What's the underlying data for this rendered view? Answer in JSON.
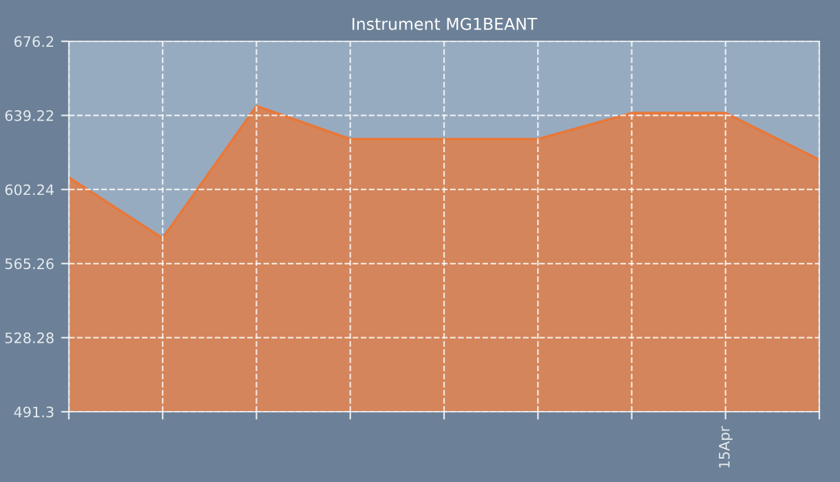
{
  "chart_data": {
    "type": "area",
    "title": "Instrument MG1BEANT",
    "categories": [
      null,
      null,
      null,
      null,
      null,
      null,
      null,
      "15Apr",
      null
    ],
    "series": [
      {
        "color": "#e8783a",
        "values": [
          608.2,
          577.9,
          643.9,
          627.4,
          627.4,
          627.4,
          640.4,
          640.4,
          617.1
        ]
      }
    ],
    "ylim": [
      491.3,
      676.2
    ],
    "yticks": [
      491.3,
      528.28,
      565.26,
      602.24,
      639.22,
      676.2
    ],
    "grid": true,
    "line_style": "dashed",
    "marker": "none"
  }
}
